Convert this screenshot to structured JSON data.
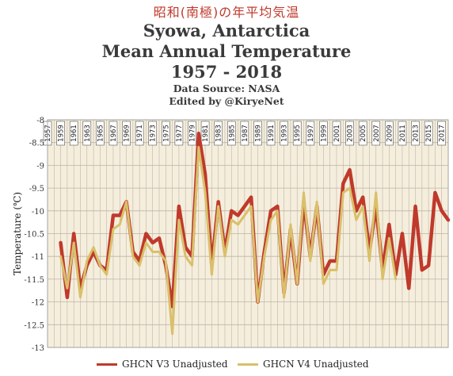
{
  "titles": {
    "jp": "昭和(南極)の年平均気温",
    "main": "Syowa, Antarctica",
    "sub": "Mean Annual Temperature",
    "years": "1957 - 2018",
    "source": "Data Source: NASA",
    "edited": "Edited by @KiryeNet"
  },
  "colors": {
    "v3": "#c0392b",
    "v4": "#d9c06a",
    "plot_bg": "#f5eedd",
    "grid": "#bdb5a6"
  },
  "chart_data": {
    "type": "line",
    "title": "Mean Annual Temperature",
    "xlabel": "",
    "ylabel": "Temperature (℃)",
    "ylim": [
      -13,
      -8
    ],
    "yticks": [
      -13,
      -12.5,
      -12,
      -11.5,
      -11,
      -10.5,
      -10,
      -9.5,
      -9,
      -8.5,
      -8
    ],
    "x": [
      1957,
      1958,
      1959,
      1960,
      1961,
      1962,
      1963,
      1964,
      1965,
      1966,
      1967,
      1968,
      1969,
      1970,
      1971,
      1972,
      1973,
      1974,
      1975,
      1976,
      1977,
      1978,
      1979,
      1980,
      1981,
      1982,
      1983,
      1984,
      1985,
      1986,
      1987,
      1988,
      1989,
      1990,
      1991,
      1992,
      1993,
      1994,
      1995,
      1996,
      1997,
      1998,
      1999,
      2000,
      2001,
      2002,
      2003,
      2004,
      2005,
      2006,
      2007,
      2008,
      2009,
      2010,
      2011,
      2012,
      2013,
      2014,
      2015,
      2016,
      2017,
      2018
    ],
    "xtick_labels": [
      "1957",
      "1959",
      "1961",
      "1963",
      "1965",
      "1967",
      "1969",
      "1971",
      "1973",
      "1975",
      "1977",
      "1979",
      "1981",
      "1983",
      "1985",
      "1987",
      "1989",
      "1991",
      "1993",
      "1995",
      "1997",
      "1999",
      "2001",
      "2003",
      "2005",
      "2007",
      "2009",
      "2011",
      "2013",
      "2015",
      "2017"
    ],
    "grid": true,
    "legend_position": "bottom",
    "series": [
      {
        "name": "GHCN V3 Unadjusted",
        "color": "#c0392b",
        "values": [
          null,
          null,
          -10.7,
          -11.9,
          -10.5,
          -11.7,
          -11.2,
          -10.9,
          -11.2,
          -11.3,
          -10.1,
          -10.1,
          -9.8,
          -10.9,
          -11.1,
          -10.5,
          -10.7,
          -10.6,
          -11.2,
          -12.1,
          -9.9,
          -10.8,
          -11.0,
          -8.3,
          -9.2,
          -11.2,
          -9.8,
          -10.9,
          -10.0,
          -10.1,
          -9.9,
          -9.7,
          -12.0,
          -10.9,
          -10.0,
          -9.9,
          -11.8,
          -10.4,
          -11.6,
          -9.8,
          -11.0,
          -9.9,
          -11.4,
          -11.1,
          -11.1,
          -9.4,
          -9.1,
          -10.0,
          -9.7,
          -10.9,
          -9.9,
          -11.3,
          -10.3,
          -11.4,
          -10.5,
          -11.7,
          -9.9,
          -11.3,
          -11.2,
          -9.6,
          -10.0,
          -10.2
        ]
      },
      {
        "name": "GHCN V4 Unadjusted",
        "color": "#d9c06a",
        "values": [
          null,
          null,
          -11.0,
          -11.7,
          -10.7,
          -11.9,
          -11.1,
          -10.8,
          -11.2,
          -11.4,
          -10.4,
          -10.3,
          -9.8,
          -11.0,
          -11.2,
          -10.7,
          -10.9,
          -10.9,
          -11.1,
          -12.7,
          -10.2,
          -11.0,
          -11.2,
          -8.6,
          -9.6,
          -11.4,
          -9.9,
          -11.0,
          -10.2,
          -10.3,
          -10.1,
          -9.9,
          -12.0,
          -11.0,
          -10.2,
          -10.0,
          -11.9,
          -10.3,
          -11.6,
          -9.6,
          -11.1,
          -9.8,
          -11.6,
          -11.3,
          -11.3,
          -9.6,
          -9.5,
          -10.2,
          -9.9,
          -11.1,
          -9.6,
          -11.5,
          -10.6,
          -11.5,
          null,
          null,
          null,
          null,
          null,
          null,
          null,
          null
        ]
      }
    ]
  }
}
